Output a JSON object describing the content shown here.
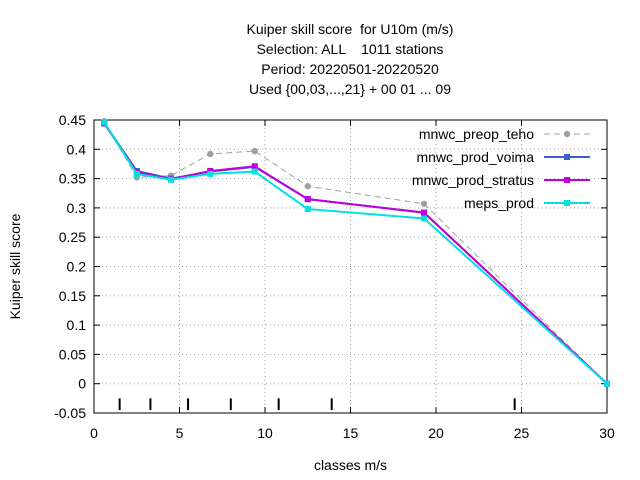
{
  "chart_data": {
    "type": "line",
    "title_lines": [
      "Kuiper skill score  for U10m (m/s)",
      "Selection: ALL    1011 stations",
      "Period: 20220501-20220520",
      "Used {00,03,...,21} + 00 01 ... 09"
    ],
    "xlabel": "classes m/s",
    "ylabel": "Kuiper skill score",
    "xlim": [
      0,
      30
    ],
    "ylim": [
      -0.05,
      0.45
    ],
    "xticks": [
      0,
      5,
      10,
      15,
      20,
      25,
      30
    ],
    "yticks": [
      -0.05,
      0,
      0.05,
      0.1,
      0.15,
      0.2,
      0.25,
      0.3,
      0.35,
      0.4,
      0.45
    ],
    "ytick_labels": [
      "-0.05",
      "0",
      "0.05",
      "0.1",
      "0.15",
      "0.2",
      "0.25",
      "0.3",
      "0.35",
      "0.4",
      "0.45"
    ],
    "grid": true,
    "legend_position": "top-right",
    "class_markers_x": [
      1.5,
      3.3,
      5.5,
      8.0,
      10.8,
      13.9,
      24.6
    ],
    "series": [
      {
        "name": "mnwc_preop_teho",
        "color": "#a0a0a0",
        "dashed": true,
        "x": [
          0.6,
          2.5,
          4.5,
          6.8,
          9.4,
          12.5,
          19.3,
          30
        ],
        "y": [
          0.448,
          0.352,
          0.355,
          0.392,
          0.397,
          0.337,
          0.307,
          0.0
        ]
      },
      {
        "name": "mnwc_prod_voima",
        "color": "#3a5fcd",
        "dashed": false,
        "x": [
          0.6,
          2.5,
          4.5,
          6.8,
          9.4,
          12.5,
          19.3,
          30
        ],
        "y": [
          0.445,
          0.363,
          0.35,
          0.362,
          0.37,
          0.315,
          0.292,
          0.0
        ]
      },
      {
        "name": "mnwc_prod_stratus",
        "color": "#c000e0",
        "dashed": false,
        "x": [
          0.6,
          2.5,
          4.5,
          6.8,
          9.4,
          12.5,
          19.3,
          30
        ],
        "y": [
          0.444,
          0.361,
          0.349,
          0.363,
          0.371,
          0.315,
          0.292,
          0.0
        ]
      },
      {
        "name": "meps_prod",
        "color": "#00e0e0",
        "dashed": false,
        "x": [
          0.6,
          2.5,
          4.5,
          6.8,
          9.4,
          12.5,
          19.3,
          30
        ],
        "y": [
          0.446,
          0.358,
          0.348,
          0.358,
          0.362,
          0.298,
          0.282,
          0.0
        ]
      }
    ]
  }
}
